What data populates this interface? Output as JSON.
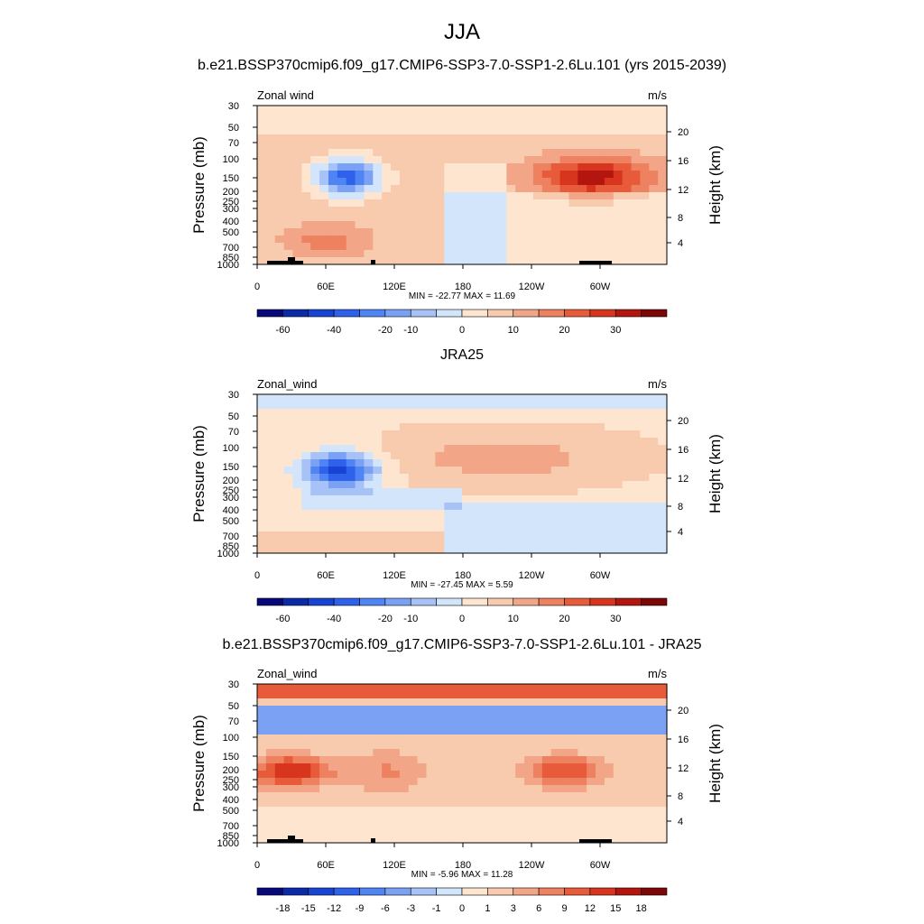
{
  "page": {
    "title": "JJA"
  },
  "colorbar_colors": {
    "diverging": [
      "#08087a",
      "#0b2aa8",
      "#1744d2",
      "#2e62ea",
      "#4f84f4",
      "#7aa1f3",
      "#a6c2f6",
      "#d2e5fa",
      "#fde5d0",
      "#f8caae",
      "#f3a587",
      "#ee815f",
      "#e75b3a",
      "#d8351e",
      "#b2160f",
      "#7d0707"
    ]
  },
  "chart_data": [
    {
      "type": "heatmap",
      "title": "b.e21.BSSP370cmip6.f09_g17.CMIP6-SSP3-7.0-SSP1-2.6Lu.101 (yrs 2015-2039)",
      "left_label": "Zonal wind",
      "right_label": "m/s",
      "ylabel": "Pressure (mb)",
      "y2label": "Height (km)",
      "x_ticks": [
        "0",
        "60E",
        "120E",
        "180",
        "120W",
        "60W"
      ],
      "y_ticks": [
        "30",
        "50",
        "70",
        "100",
        "150",
        "200",
        "250",
        "300",
        "400",
        "500",
        "700",
        "850",
        "1000"
      ],
      "y2_ticks": [
        "20",
        "16",
        "12",
        "8",
        "4"
      ],
      "minmax": "MIN = -22.77  MAX =  11.69",
      "colorbar_labels": [
        "-60",
        "-40",
        "-20",
        "-10",
        "0",
        "10",
        "20",
        "30"
      ],
      "min": -22.77,
      "max": 11.69
    },
    {
      "type": "heatmap",
      "title": "JRA25",
      "left_label": "Zonal_wind",
      "right_label": "m/s",
      "ylabel": "Pressure (mb)",
      "y2label": "Height (km)",
      "x_ticks": [
        "0",
        "60E",
        "120E",
        "180",
        "120W",
        "60W"
      ],
      "y_ticks": [
        "30",
        "50",
        "70",
        "100",
        "150",
        "200",
        "250",
        "300",
        "400",
        "500",
        "700",
        "850",
        "1000"
      ],
      "y2_ticks": [
        "20",
        "16",
        "12",
        "8",
        "4"
      ],
      "minmax": "MIN = -27.45  MAX =   5.59",
      "colorbar_labels": [
        "-60",
        "-40",
        "-20",
        "-10",
        "0",
        "10",
        "20",
        "30"
      ],
      "min": -27.45,
      "max": 5.59
    },
    {
      "type": "heatmap",
      "title": "b.e21.BSSP370cmip6.f09_g17.CMIP6-SSP3-7.0-SSP1-2.6Lu.101 - JRA25",
      "left_label": "Zonal_wind",
      "right_label": "m/s",
      "ylabel": "Pressure (mb)",
      "y2label": "Height (km)",
      "x_ticks": [
        "0",
        "60E",
        "120E",
        "180",
        "120W",
        "60W"
      ],
      "y_ticks": [
        "30",
        "50",
        "70",
        "100",
        "150",
        "200",
        "250",
        "300",
        "400",
        "500",
        "700",
        "850",
        "1000"
      ],
      "y2_ticks": [
        "20",
        "16",
        "12",
        "8",
        "4"
      ],
      "minmax": "MIN = -5.96  MAX = 11.28",
      "colorbar_labels": [
        "-18",
        "-15",
        "-12",
        "-9",
        "-6",
        "-3",
        "-1",
        "0",
        "1",
        "3",
        "6",
        "9",
        "12",
        "15",
        "18"
      ],
      "min": -5.96,
      "max": 11.28
    }
  ]
}
